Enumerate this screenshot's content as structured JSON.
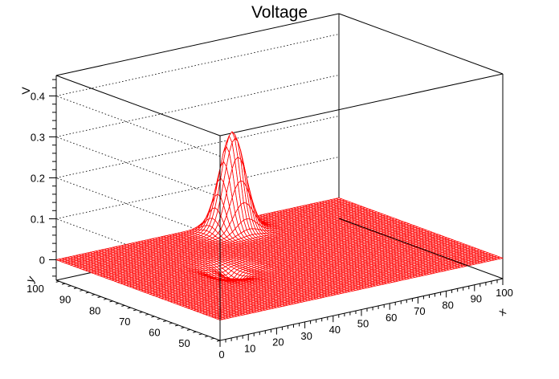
{
  "chart_data": {
    "type": "surface",
    "title": "Voltage",
    "xlabel": "x",
    "ylabel": "y",
    "zlabel": "V",
    "xlim": [
      0,
      100
    ],
    "ylim": [
      45,
      100
    ],
    "zlim": [
      -0.05,
      0.45
    ],
    "x_ticks": [
      "0",
      "10",
      "20",
      "30",
      "40",
      "50",
      "60",
      "70",
      "80",
      "90",
      "100"
    ],
    "y_ticks": [
      "50",
      "60",
      "70",
      "80",
      "90",
      "100"
    ],
    "z_ticks": [
      "0",
      "0.1",
      "0.2",
      "0.3",
      "0.4"
    ],
    "grid": true,
    "surface_color": "#ff0000",
    "peak": {
      "x": 57,
      "y": 95,
      "v": 0.24
    },
    "dip": {
      "x": 32,
      "y": 72,
      "v": -0.02
    },
    "grid_resolution": {
      "x_lines": 100,
      "y_lines": 56
    }
  }
}
